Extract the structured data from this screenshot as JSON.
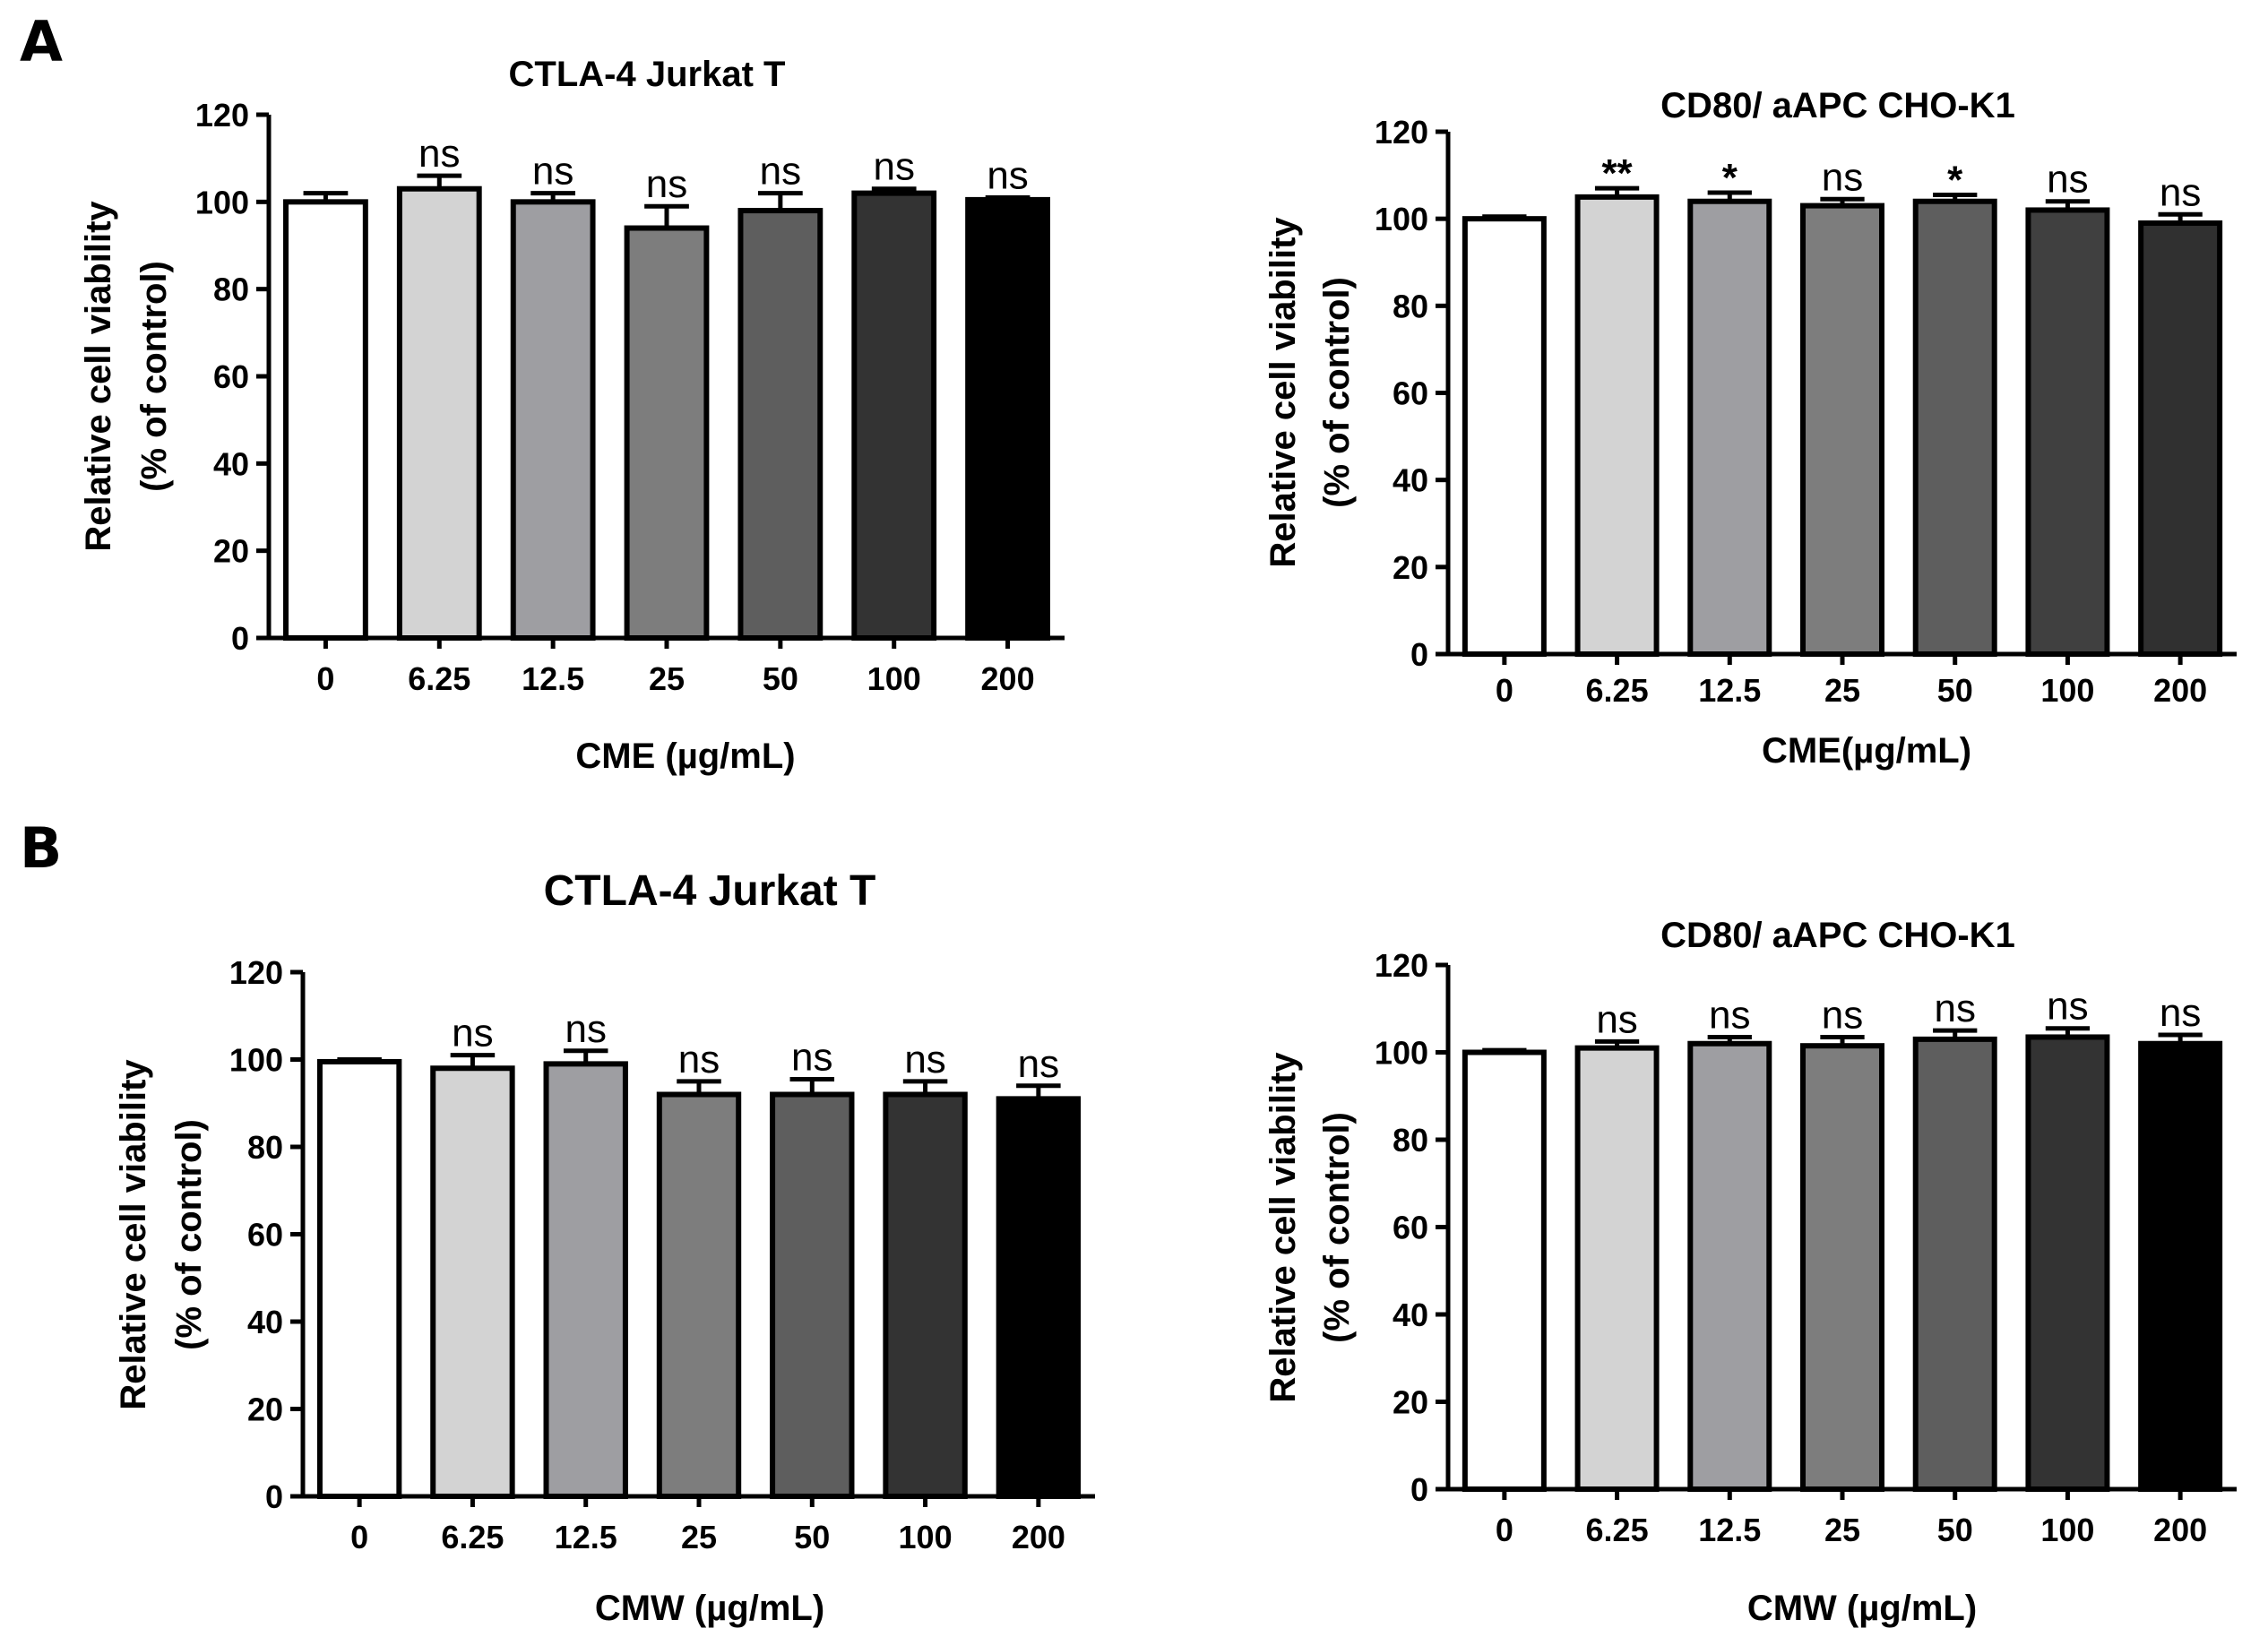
{
  "panels": [
    "A",
    "B"
  ],
  "chart_data": [
    {
      "type": "bar",
      "panel": "A",
      "title": "CTLA-4 Jurkat T",
      "categories": [
        "0",
        "6.25",
        "12.5",
        "25",
        "50",
        "100",
        "200"
      ],
      "values": [
        100,
        103,
        100,
        94,
        98,
        102,
        100.5
      ],
      "errors": [
        2,
        3,
        2,
        5,
        4,
        1,
        0.5
      ],
      "significance": [
        "",
        "ns",
        "ns",
        "ns",
        "ns",
        "ns",
        "ns"
      ],
      "bar_colors": [
        "#ffffff",
        "#d3d3d3",
        "#9e9ea2",
        "#7d7d7d",
        "#5e5e5e",
        "#333333",
        "#000000"
      ],
      "xlabel": "CME (µg/mL)",
      "ylabel": "Relative cell viability",
      "ylabel2": "(% of control)",
      "yticks": [
        "0",
        "20",
        "40",
        "60",
        "80",
        "100",
        "120"
      ],
      "ylim": [
        0,
        120
      ]
    },
    {
      "type": "bar",
      "panel": "A",
      "title": "CD80/ aAPC CHO-K1",
      "categories": [
        "0",
        "6.25",
        "12.5",
        "25",
        "50",
        "100",
        "200"
      ],
      "values": [
        100,
        105,
        104,
        103,
        104,
        102,
        99
      ],
      "errors": [
        0.5,
        2,
        2,
        1.5,
        1.5,
        2,
        2
      ],
      "significance": [
        "",
        "**",
        "*",
        "ns",
        "*",
        "ns",
        "ns"
      ],
      "bar_colors": [
        "#ffffff",
        "#d3d3d3",
        "#9e9ea2",
        "#7d7d7d",
        "#5e5e5e",
        "#404040",
        "#303030"
      ],
      "xlabel": "CME(µg/mL)",
      "ylabel": "Relative cell viability",
      "ylabel2": "(% of control)",
      "yticks": [
        "0",
        "20",
        "40",
        "60",
        "80",
        "100",
        "120"
      ],
      "ylim": [
        0,
        120
      ]
    },
    {
      "type": "bar",
      "panel": "B",
      "title": "CTLA-4 Jurkat T",
      "categories": [
        "0",
        "6.25",
        "12.5",
        "25",
        "50",
        "100",
        "200"
      ],
      "values": [
        99.5,
        98,
        99,
        92,
        92,
        92,
        91
      ],
      "errors": [
        0.5,
        3,
        3,
        3,
        3.5,
        3,
        3
      ],
      "significance": [
        "",
        "ns",
        "ns",
        "ns",
        "ns",
        "ns",
        "ns"
      ],
      "bar_colors": [
        "#ffffff",
        "#d3d3d3",
        "#9e9ea2",
        "#7d7d7d",
        "#5e5e5e",
        "#333333",
        "#000000"
      ],
      "xlabel": "CMW (µg/mL)",
      "ylabel": "Relative cell viability",
      "ylabel2": "(% of control)",
      "yticks": [
        "0",
        "20",
        "40",
        "60",
        "80",
        "100",
        "120"
      ],
      "ylim": [
        0,
        120
      ]
    },
    {
      "type": "bar",
      "panel": "B",
      "title": "CD80/ aAPC CHO-K1",
      "categories": [
        "0",
        "6.25",
        "12.5",
        "25",
        "50",
        "100",
        "200"
      ],
      "values": [
        100,
        101,
        102,
        101.5,
        103,
        103.5,
        102
      ],
      "errors": [
        0.5,
        1.5,
        1.5,
        2,
        2,
        2,
        2
      ],
      "significance": [
        "",
        "ns",
        "ns",
        "ns",
        "ns",
        "ns",
        "ns"
      ],
      "bar_colors": [
        "#ffffff",
        "#d3d3d3",
        "#9e9ea2",
        "#7d7d7d",
        "#5e5e5e",
        "#333333",
        "#000000"
      ],
      "xlabel": "CMW (µg/mL)",
      "ylabel": "Relative cell viability",
      "ylabel2": "(% of control)",
      "yticks": [
        "0",
        "20",
        "40",
        "60",
        "80",
        "100",
        "120"
      ],
      "ylim": [
        0,
        120
      ]
    }
  ]
}
